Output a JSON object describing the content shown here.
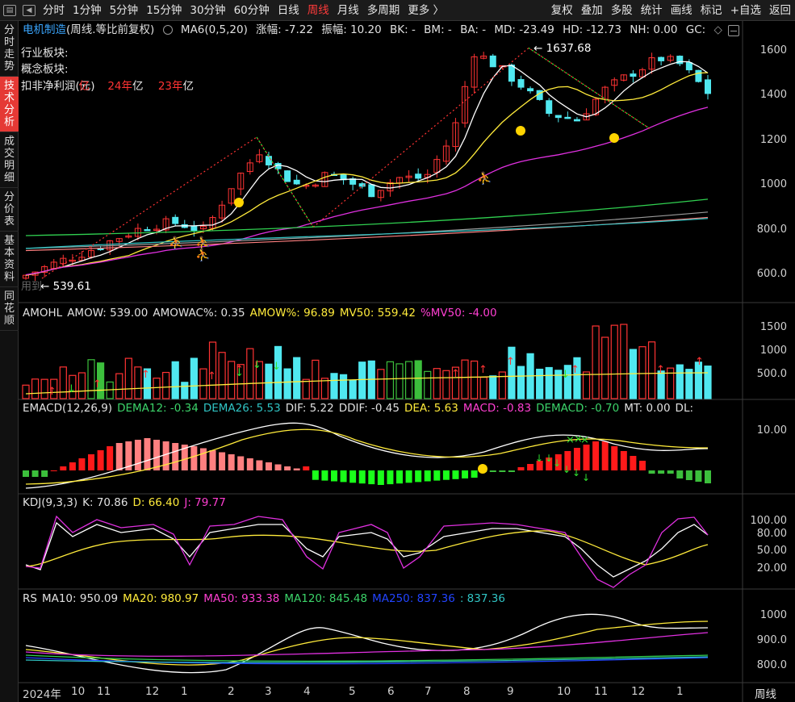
{
  "toolbar": {
    "items": [
      {
        "label": "分时",
        "active": false
      },
      {
        "label": "1分钟",
        "active": false
      },
      {
        "label": "5分钟",
        "active": false
      },
      {
        "label": "15分钟",
        "active": false
      },
      {
        "label": "30分钟",
        "active": false
      },
      {
        "label": "60分钟",
        "active": false
      },
      {
        "label": "日线",
        "active": false
      },
      {
        "label": "周线",
        "active": true
      },
      {
        "label": "月线",
        "active": false
      },
      {
        "label": "多周期",
        "active": false
      },
      {
        "label": "更多 〉",
        "active": false
      }
    ],
    "right_items": [
      "复权",
      "叠加",
      "多股",
      "统计",
      "画线",
      "标记",
      "+自选",
      "返回"
    ]
  },
  "sidebar": {
    "items": [
      {
        "label": "分时走势",
        "active": false
      },
      {
        "label": "技术分析",
        "active": true
      },
      {
        "label": "成交明细",
        "active": false
      },
      {
        "label": "分价表",
        "active": false
      },
      {
        "label": "基本资料",
        "active": false
      },
      {
        "label": "同花顺",
        "active": false
      }
    ]
  },
  "main_legend": {
    "name": "电机制造",
    "period": "(周线.等比前复权)",
    "ma": "MA6(0,5,20)",
    "change": "涨幅: -7.22",
    "amplitude": "振幅: 10.20",
    "bk": "BK: -",
    "bm": "BM: -",
    "ba": "BA: -",
    "md": "MD: -23.49",
    "hd": "HD: -12.73",
    "nh": "NH: 0.00",
    "gc": "GC:"
  },
  "info": {
    "industry": "行业板块:",
    "concept": "概念板块:",
    "profit_label": "扣非净利润(元)",
    "profit_a": "亿",
    "y24": "24",
    "y24_suffix": "年",
    "y24_unit": "亿",
    "y23": "23",
    "y23_suffix": "年",
    "y23_unit": "亿"
  },
  "annotations": {
    "high": "1637.68",
    "low": "539.61",
    "watermark": "用到"
  },
  "price_axis": [
    "1600",
    "1400",
    "1200",
    "1000",
    "800.0",
    "600.0"
  ],
  "amo": {
    "legend": [
      {
        "text": "AMOHL",
        "color": "#e0e0e0"
      },
      {
        "text": "AMOW: 539.00",
        "color": "#e0e0e0"
      },
      {
        "text": "AMOWAC%: 0.35",
        "color": "#e0e0e0"
      },
      {
        "text": "AMOW%: 96.89",
        "color": "#ffeb3b"
      },
      {
        "text": "MV50: 559.42",
        "color": "#ffeb3b"
      },
      {
        "text": "%MV50: -4.00",
        "color": "#ff3fd2"
      }
    ],
    "axis": [
      "1500",
      "1000",
      "500.0"
    ]
  },
  "macd": {
    "legend": [
      {
        "text": "EMACD(12,26,9)",
        "color": "#e0e0e0"
      },
      {
        "text": "DEMA12: -0.34",
        "color": "#3cd46a"
      },
      {
        "text": "DEMA26: 5.53",
        "color": "#30c4c4"
      },
      {
        "text": "DIF: 5.22",
        "color": "#e0e0e0"
      },
      {
        "text": "DDIF: -0.45",
        "color": "#e0e0e0"
      },
      {
        "text": "DEA: 5.63",
        "color": "#ffeb3b"
      },
      {
        "text": "MACD: -0.83",
        "color": "#ff3fd2"
      },
      {
        "text": "DEMACD: -0.70",
        "color": "#3cd46a"
      },
      {
        "text": "MT: 0.00",
        "color": "#e0e0e0"
      },
      {
        "text": "DL:",
        "color": "#e0e0e0"
      }
    ],
    "axis": [
      "10.00"
    ]
  },
  "kdj": {
    "legend": [
      {
        "text": "KDJ(9,3,3)",
        "color": "#e0e0e0"
      },
      {
        "text": "K: 70.86",
        "color": "#e0e0e0"
      },
      {
        "text": "D: 66.40",
        "color": "#ffeb3b"
      },
      {
        "text": "J: 79.77",
        "color": "#ff3fd2"
      }
    ],
    "axis": [
      "100.00",
      "80.00",
      "50.00",
      "20.00"
    ]
  },
  "rs": {
    "legend": [
      {
        "text": "RS",
        "color": "#e0e0e0"
      },
      {
        "text": "MA10: 950.09",
        "color": "#e0e0e0"
      },
      {
        "text": "MA20: 980.97",
        "color": "#ffeb3b"
      },
      {
        "text": "MA50: 933.38",
        "color": "#ff3fd2"
      },
      {
        "text": "MA120: 845.48",
        "color": "#3cd46a"
      },
      {
        "text": "MA250: 837.36",
        "color": "#2244ff"
      },
      {
        "text": ": 837.36",
        "color": "#30c4c4"
      }
    ],
    "axis": [
      "1000",
      "900.0",
      "800.0"
    ]
  },
  "x_axis": [
    "2024年",
    "10",
    "11",
    "12",
    "1",
    "2",
    "3",
    "4",
    "5",
    "6",
    "7",
    "8",
    "9",
    "10",
    "11",
    "12",
    "1"
  ],
  "period_label": "周线",
  "chart_data": {
    "type": "candlestick",
    "price_range": [
      560,
      1680
    ],
    "high": 1637.68,
    "low": 539.61
  },
  "colors": {
    "up": "#ff3333",
    "down": "#50e8f0",
    "ma_white": "#ffffff",
    "ma_yellow": "#ffeb3b",
    "ma_magenta": "#e030e0",
    "ma_green": "#30d050",
    "ma_gray": "#9a9a9a",
    "ma_pink": "#ff8080"
  }
}
